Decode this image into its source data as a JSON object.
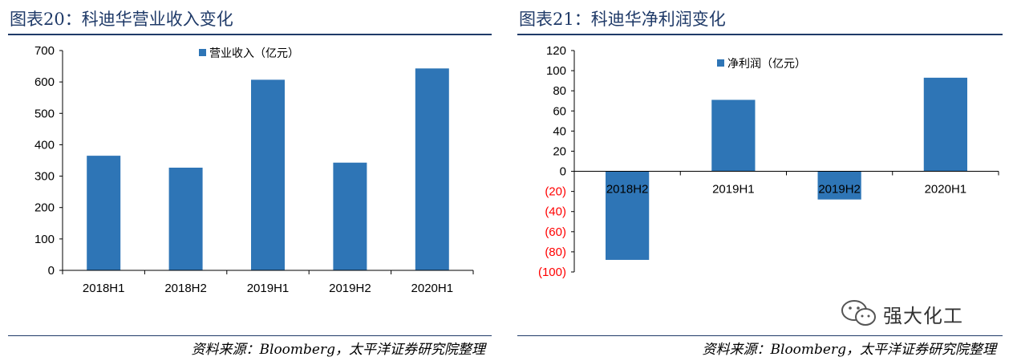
{
  "colors": {
    "bar": "#2e75b6",
    "title": "#1f3a68",
    "negative_tick": "#ff0000"
  },
  "watermark": {
    "text": "强大化工",
    "icon": "wechat-icon"
  },
  "chart_data": [
    {
      "type": "bar",
      "fig_title": "图表20：科迪华营业收入变化",
      "source": "资料来源：Bloomberg，太平洋证券研究院整理",
      "categories": [
        "2018H1",
        "2018H2",
        "2019H1",
        "2019H2",
        "2020H1"
      ],
      "series": [
        {
          "name": "营业收入（亿元）",
          "values": [
            365,
            327,
            607,
            343,
            643
          ]
        }
      ],
      "ylim": [
        0,
        700
      ],
      "yticks": [
        0,
        100,
        200,
        300,
        400,
        500,
        600,
        700
      ],
      "ytick_labels": [
        "0",
        "100",
        "200",
        "300",
        "400",
        "500",
        "600",
        "700"
      ],
      "legend": "top-center",
      "grid": false
    },
    {
      "type": "bar",
      "fig_title": "图表21：科迪华净利润变化",
      "source": "资料来源：Bloomberg，太平洋证券研究院整理",
      "categories": [
        "2018H2",
        "2019H1",
        "2019H2",
        "2020H1"
      ],
      "series": [
        {
          "name": "净利润（亿元）",
          "values": [
            -88,
            71,
            -28,
            93
          ]
        }
      ],
      "ylim": [
        -100,
        120
      ],
      "yticks": [
        -100,
        -80,
        -60,
        -40,
        -20,
        0,
        20,
        40,
        60,
        80,
        100,
        120
      ],
      "ytick_labels": [
        "(100)",
        "(80)",
        "(60)",
        "(40)",
        "(20)",
        "0",
        "20",
        "40",
        "60",
        "80",
        "100",
        "120"
      ],
      "legend": "top-center",
      "grid": false
    }
  ]
}
